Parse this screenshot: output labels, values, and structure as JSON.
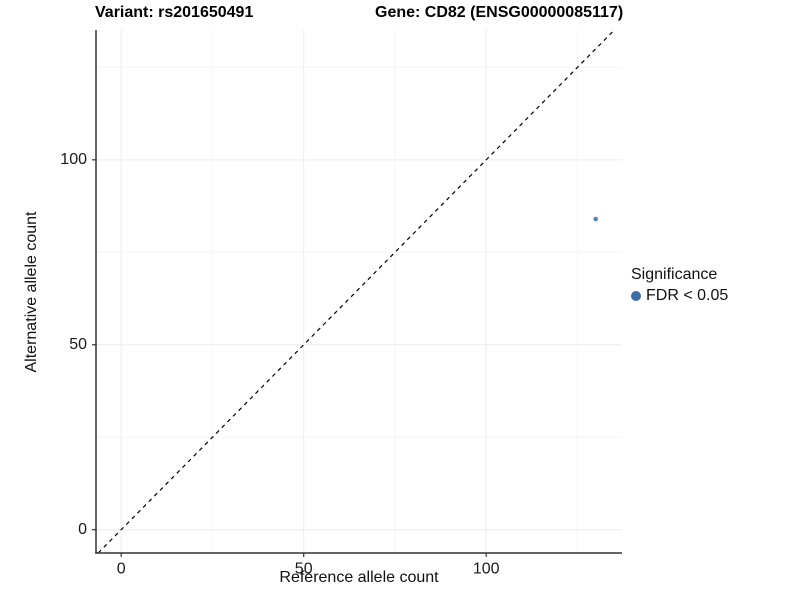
{
  "titles": {
    "variant": "Variant: rs201650491",
    "gene": "Gene: CD82 (ENSG00000085117)"
  },
  "legend": {
    "title": "Significance",
    "items": [
      {
        "label": "FDR < 0.05",
        "color": "#3d6da6"
      }
    ]
  },
  "chart_data": {
    "type": "scatter",
    "title": "Variant: rs201650491  |  Gene: CD82 (ENSG00000085117)",
    "xlabel": "Reference allele count",
    "ylabel": "Alternative allele count",
    "xlim": [
      -6.9,
      137.2
    ],
    "ylim": [
      -6.3,
      135.1
    ],
    "x_ticks": [
      0,
      50,
      100
    ],
    "y_ticks": [
      0,
      50,
      100
    ],
    "x_minor_ticks": [
      25,
      75,
      125
    ],
    "y_minor_ticks": [
      25,
      75,
      125
    ],
    "grid": "on",
    "legend_position": "right",
    "series": [
      {
        "name": "FDR < 0.05",
        "points": [
          {
            "x": 130,
            "y": 84
          }
        ],
        "color": "#5585b5",
        "marker_radius": 2.3
      }
    ],
    "reference_line": {
      "type": "identity y=x",
      "style": "dashed",
      "color": "#000000"
    },
    "style_colors": {
      "major_grid": "#ececec",
      "minor_grid": "#f5f5f5",
      "axis_line": "#333333",
      "tick_text": "#1a1a1a"
    }
  }
}
